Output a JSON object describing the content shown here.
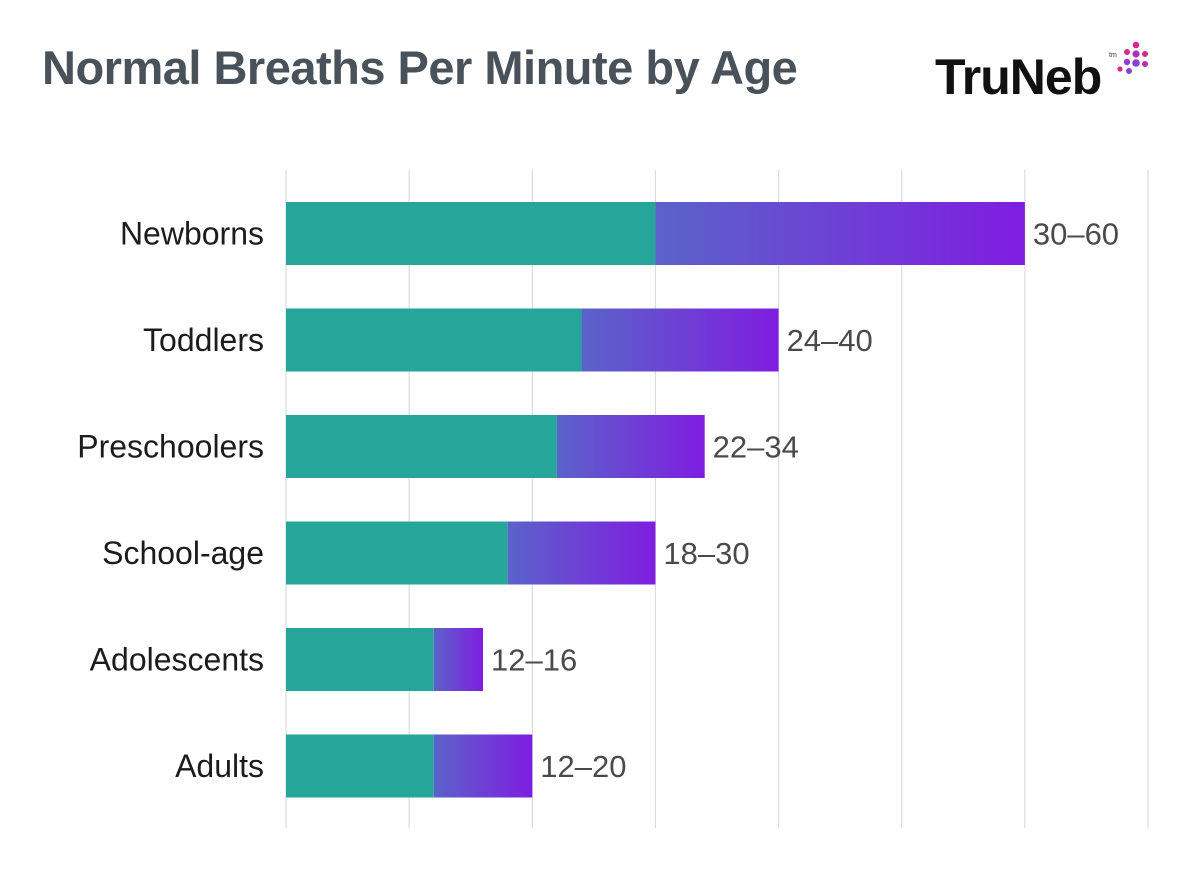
{
  "title": "Normal Breaths Per Minute by Age",
  "logo": {
    "text": "TruNeb",
    "tm": "tm"
  },
  "colors": {
    "min_bar": "#26a69a",
    "gradient_start": "#5b63c9",
    "gradient_end": "#7f1de0",
    "grid": "#dcdcdc",
    "title": "#49525a"
  },
  "chart_data": {
    "type": "bar",
    "orientation": "horizontal",
    "stacked": true,
    "categories": [
      "Newborns",
      "Toddlers",
      "Preschoolers",
      "School-age",
      "Adolescents",
      "Adults"
    ],
    "ranges": [
      [
        30,
        60
      ],
      [
        24,
        40
      ],
      [
        22,
        34
      ],
      [
        18,
        30
      ],
      [
        12,
        16
      ],
      [
        12,
        20
      ]
    ],
    "value_labels": [
      "30–60",
      "24–40",
      "22–34",
      "18–30",
      "12–16",
      "12–20"
    ],
    "xlim": [
      0,
      70
    ],
    "grid": true,
    "legend": "none"
  }
}
